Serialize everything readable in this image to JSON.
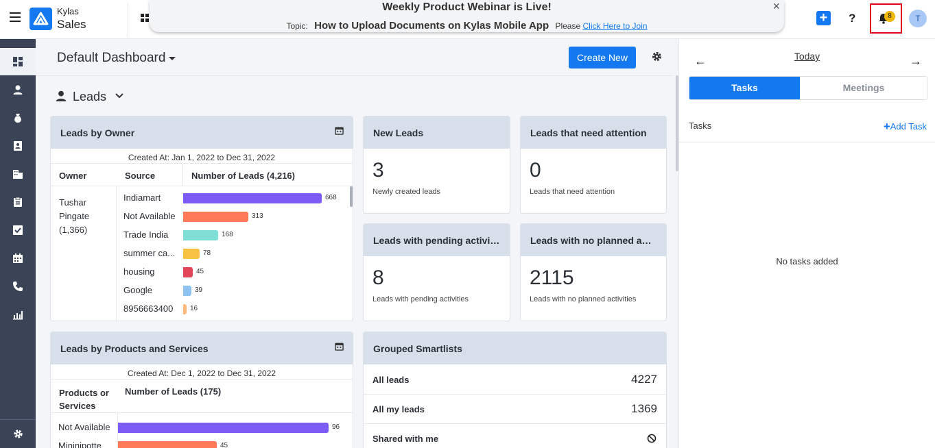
{
  "header": {
    "brand_top": "Kylas",
    "brand_main": "Sales",
    "banner": {
      "title": "Weekly Product Webinar is Live!",
      "topic_label": "Topic:",
      "topic_name": "How to Upload Documents on Kylas Mobile App",
      "please": "Please",
      "link": "Click Here to Join"
    },
    "close_glyph": "×",
    "add_glyph": "+",
    "help_glyph": "?",
    "notification_count": "8",
    "avatar_initial": "T"
  },
  "dashboard": {
    "title": "Default Dashboard",
    "create_button": "Create New",
    "section": "Leads"
  },
  "leads_by_owner": {
    "title": "Leads by Owner",
    "range": "Created At: Jan 1, 2022 to Dec 31, 2022",
    "col_owner": "Owner",
    "col_source": "Source",
    "col_count": "Number of Leads (4,216)",
    "owner_line1": "Tushar",
    "owner_line2": "Pingate",
    "owner_count": "(1,366)",
    "rows": [
      {
        "label": "Indiamart",
        "value": "668",
        "num": 668,
        "color": "#7c5cf4"
      },
      {
        "label": "Not Available",
        "value": "313",
        "num": 313,
        "color": "#ff7a59"
      },
      {
        "label": "Trade India",
        "value": "168",
        "num": 168,
        "color": "#7fded5"
      },
      {
        "label": "summer ca...",
        "value": "78",
        "num": 78,
        "color": "#f7c244"
      },
      {
        "label": "housing",
        "value": "45",
        "num": 45,
        "color": "#e0455a"
      },
      {
        "label": "Google",
        "value": "39",
        "num": 39,
        "color": "#8fc3f2"
      },
      {
        "label": "8956663400",
        "value": "16",
        "num": 16,
        "color": "#ffb97a"
      }
    ]
  },
  "stat_cards": [
    {
      "title": "New Leads",
      "value": "3",
      "desc": "Newly created leads"
    },
    {
      "title": "Leads that need attention",
      "value": "0",
      "desc": "Leads that need attention"
    },
    {
      "title": "Leads with pending activiti...",
      "value": "8",
      "desc": "Leads with pending activities"
    },
    {
      "title": "Leads with no planned acti...",
      "value": "2115",
      "desc": "Leads with no planned activities"
    }
  ],
  "leads_by_products": {
    "title": "Leads by Products and Services",
    "range": "Created At: Dec 1, 2022 to Dec 31, 2022",
    "col_products_1": "Products or",
    "col_products_2": "Services",
    "col_count": "Number of Leads (175)",
    "rows": [
      {
        "label": "Not Available",
        "value": "96",
        "num": 96,
        "color": "#7c5cf4"
      },
      {
        "label": "Mininipotte",
        "value": "45",
        "num": 45,
        "color": "#ff7a59"
      }
    ]
  },
  "smartlists": {
    "title": "Grouped Smartlists",
    "rows": [
      {
        "label": "All leads",
        "count": "4227"
      },
      {
        "label": "All my leads",
        "count": "1369"
      },
      {
        "label": "Shared with me",
        "count": ""
      }
    ]
  },
  "right_panel": {
    "back_glyph": "←",
    "forward_glyph": "→",
    "today": "Today",
    "tab_tasks": "Tasks",
    "tab_meetings": "Meetings",
    "tasks_label": "Tasks",
    "add_task": "Add Task",
    "add_glyph": "+",
    "empty": "No tasks added"
  },
  "colors": {
    "accent": "#1479f0",
    "nav_bg": "#3a4456",
    "card_head": "#d7e0ea",
    "badge": "#f0b700"
  }
}
